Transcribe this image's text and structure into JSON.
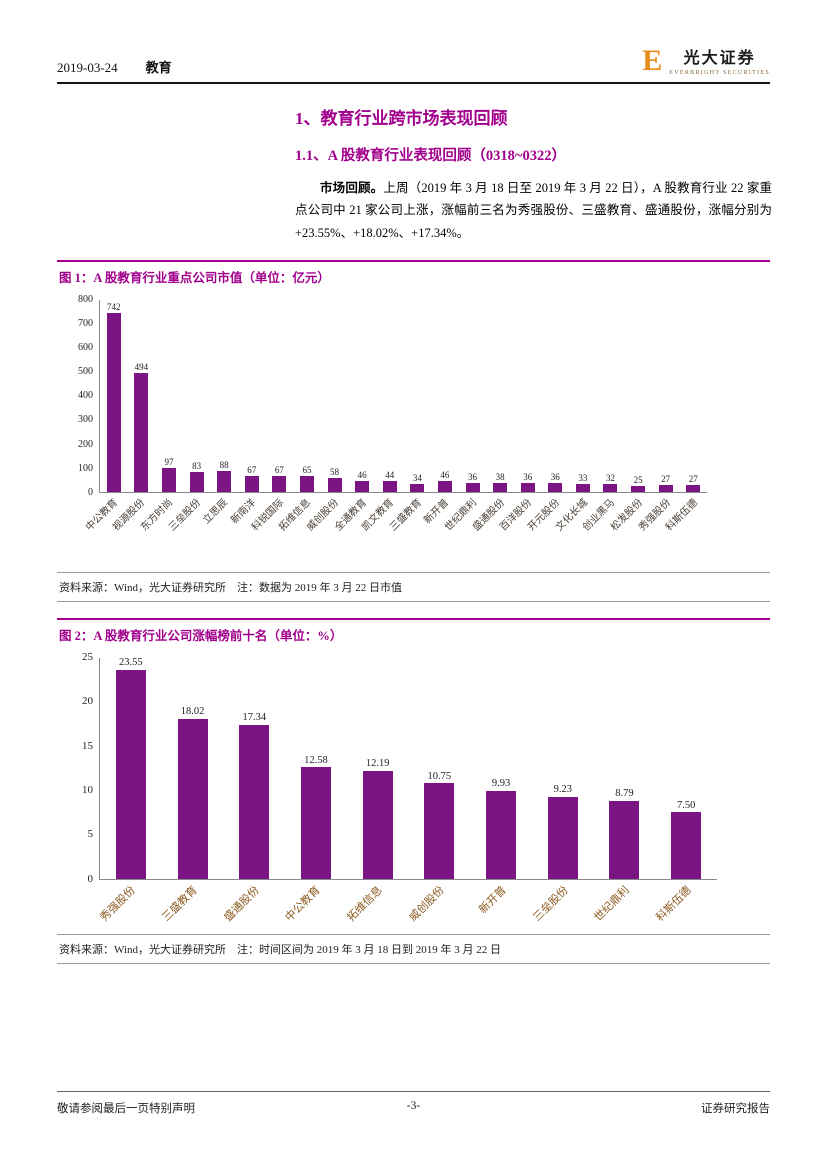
{
  "header": {
    "date": "2019-03-24",
    "category": "教育",
    "logo": {
      "mark": "E",
      "name": "光大证券",
      "subname": "EVERBRIGHT SECURITIES"
    }
  },
  "section": {
    "h1": "1、教育行业跨市场表现回顾",
    "h2": "1.1、A 股教育行业表现回顾（0318~0322）",
    "paragraph_lead": "市场回顾。",
    "paragraph_body": "上周（2019 年 3 月 18 日至 2019 年 3 月 22 日），A 股教育行业 22 家重点公司中 21 家公司上涨，涨幅前三名为秀强股份、三盛教育、盛通股份，涨幅分别为+23.55%、+18.02%、+17.34%。"
  },
  "figures": [
    {
      "title": "图 1：A 股教育行业重点公司市值（单位：亿元）",
      "source": "资料来源：Wind，光大证券研究所　注：数据为 2019 年 3 月 22 日市值"
    },
    {
      "title": "图 2：A 股教育行业公司涨幅榜前十名（单位：%）",
      "source": "资料来源：Wind，光大证券研究所　注：时间区间为 2019 年 3 月 18 日到 2019 年 3 月 22 日"
    }
  ],
  "footer": {
    "left": "敬请参阅最后一页特别声明",
    "center": "-3-",
    "right": "证券研究报告"
  },
  "colors": {
    "accent": "#A1008C",
    "bar": "#7B1583",
    "logo_orange": "#E78D1E"
  },
  "chart_data": [
    {
      "type": "bar",
      "title": "A 股教育行业重点公司市值（单位：亿元）",
      "categories": [
        "中公教育",
        "视源股份",
        "东方时尚",
        "三垒股份",
        "立思辰",
        "新南洋",
        "科锐国际",
        "拓维信息",
        "威创股份",
        "全通教育",
        "凯文教育",
        "三盛教育",
        "新开普",
        "世纪鼎利",
        "盛通股份",
        "百洋股份",
        "开元股份",
        "文化长城",
        "创业黑马",
        "松发股份",
        "秀强股份",
        "科斯伍德"
      ],
      "values": [
        742,
        494,
        97,
        83,
        88,
        67,
        67,
        65,
        58,
        46,
        44,
        34,
        46,
        36,
        38,
        36,
        36,
        33,
        32,
        25,
        27,
        27
      ],
      "xlabel": "",
      "ylabel": "",
      "ylim": [
        0,
        800
      ],
      "ytick_step": 100,
      "grid": false,
      "legend": "none"
    },
    {
      "type": "bar",
      "title": "A 股教育行业公司涨幅榜前十名（单位：%）",
      "categories": [
        "秀强股份",
        "三盛教育",
        "盛通股份",
        "中公教育",
        "拓维信息",
        "威创股份",
        "新开普",
        "三垒股份",
        "世纪鼎利",
        "科斯伍德"
      ],
      "values": [
        23.55,
        18.02,
        17.34,
        12.58,
        12.19,
        10.75,
        9.93,
        9.23,
        8.79,
        7.5
      ],
      "xlabel": "",
      "ylabel": "",
      "ylim": [
        0,
        25
      ],
      "ytick_step": 5,
      "grid": false,
      "legend": "none"
    }
  ]
}
